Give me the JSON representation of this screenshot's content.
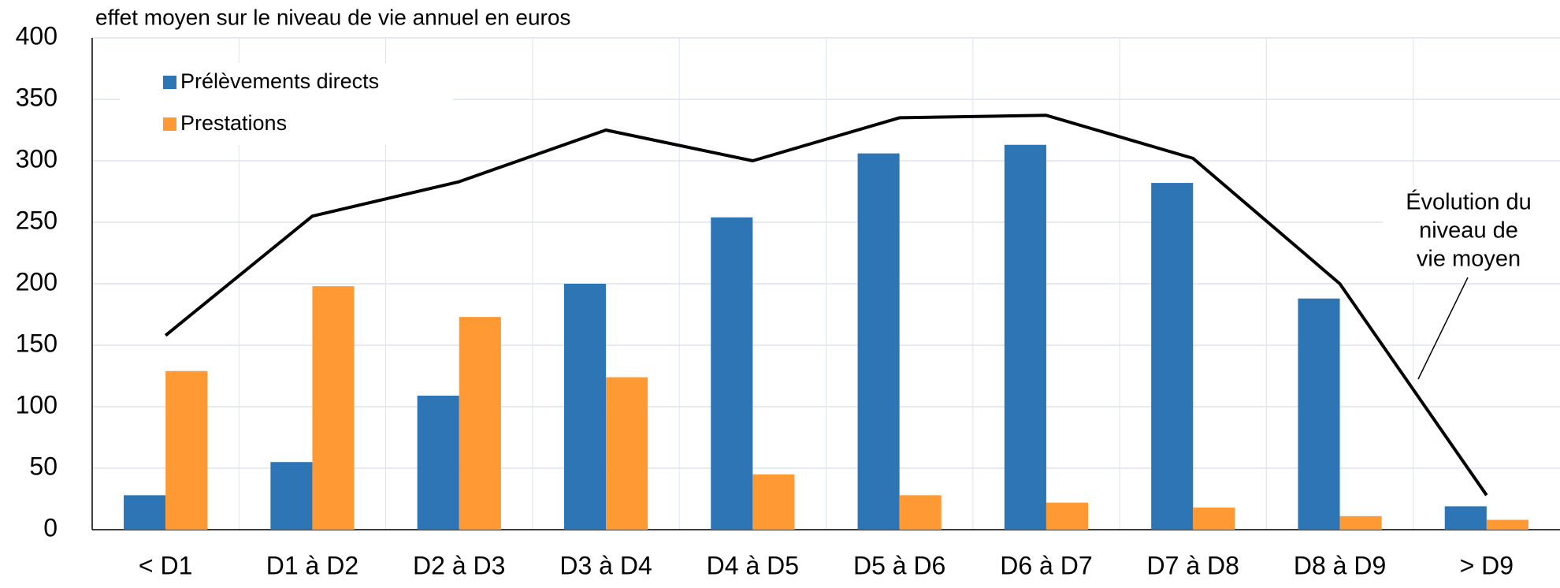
{
  "chart_data": {
    "type": "bar",
    "title": "effet moyen sur le niveau de vie annuel en euros",
    "categories": [
      "< D1",
      "D1 à D2",
      "D2 à D3",
      "D3 à D4",
      "D4 à D5",
      "D5 à D6",
      "D6 à D7",
      "D7 à D8",
      "D8 à D9",
      "> D9"
    ],
    "series": [
      {
        "name": "Prélèvements directs",
        "color": "#2e75b6",
        "values": [
          28,
          55,
          109,
          200,
          254,
          306,
          313,
          282,
          188,
          19
        ]
      },
      {
        "name": "Prestations",
        "color": "#ff9933",
        "values": [
          129,
          198,
          173,
          124,
          45,
          28,
          22,
          18,
          11,
          8
        ]
      }
    ],
    "line": {
      "color": "#000000",
      "values": [
        158,
        255,
        283,
        325,
        300,
        335,
        337,
        302,
        200,
        28
      ]
    },
    "annotation": [
      "Évolution du",
      "niveau de",
      "vie moyen"
    ],
    "ylim": [
      0,
      400
    ],
    "yticks": [
      0,
      50,
      100,
      150,
      200,
      250,
      300,
      350,
      400
    ],
    "grid": true,
    "legend": "top-left"
  }
}
